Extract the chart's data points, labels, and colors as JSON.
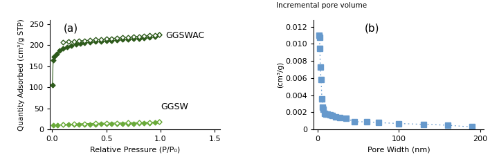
{
  "panel_a": {
    "title": "(a)",
    "xlabel": "Relative Pressure (P/P₀)",
    "ylabel": "Quantity Adsorbed (cm³/g STP)",
    "xlim": [
      -0.02,
      1.55
    ],
    "ylim": [
      0,
      260
    ],
    "yticks": [
      0,
      50,
      100,
      150,
      200,
      250
    ],
    "xticks": [
      0,
      0.5,
      1.0,
      1.5
    ],
    "ggswac_adsorption_x": [
      0.003,
      0.01,
      0.02,
      0.04,
      0.07,
      0.1,
      0.14,
      0.18,
      0.22,
      0.26,
      0.3,
      0.35,
      0.4,
      0.45,
      0.5,
      0.55,
      0.6,
      0.65,
      0.7,
      0.75,
      0.8,
      0.85,
      0.9,
      0.95,
      0.99
    ],
    "ggswac_adsorption_y": [
      105,
      165,
      173,
      180,
      187,
      192,
      196,
      199,
      202,
      204,
      206,
      207,
      208,
      209,
      210,
      211,
      212,
      213,
      214,
      215,
      216,
      217,
      218,
      220,
      225
    ],
    "ggswac_desorption_x": [
      0.99,
      0.95,
      0.9,
      0.85,
      0.8,
      0.75,
      0.7,
      0.65,
      0.6,
      0.55,
      0.5,
      0.45,
      0.4,
      0.35,
      0.3,
      0.25,
      0.2,
      0.15,
      0.1
    ],
    "ggswac_desorption_y": [
      226,
      224,
      223,
      222,
      221,
      220,
      219,
      218,
      217,
      216,
      215,
      214,
      213,
      212,
      211,
      210,
      209,
      208,
      207
    ],
    "ggsw_adsorption_x": [
      0.01,
      0.05,
      0.1,
      0.15,
      0.2,
      0.25,
      0.3,
      0.35,
      0.4,
      0.45,
      0.5,
      0.55,
      0.6,
      0.65,
      0.7,
      0.75,
      0.8,
      0.85,
      0.9,
      0.95,
      0.99
    ],
    "ggsw_adsorption_y": [
      10,
      10.5,
      11,
      11.2,
      11.5,
      11.8,
      12,
      12.2,
      12.5,
      12.7,
      13,
      13.2,
      13.5,
      13.7,
      14,
      14.2,
      14.5,
      15,
      15.5,
      16,
      18
    ],
    "ggsw_desorption_x": [
      0.99,
      0.9,
      0.8,
      0.7,
      0.6,
      0.5,
      0.4,
      0.3,
      0.2,
      0.1
    ],
    "ggsw_desorption_y": [
      18,
      17,
      16.5,
      16,
      15.5,
      15,
      14.5,
      14,
      13,
      11
    ],
    "color_dark": "#2d5a1b",
    "color_light": "#6aaa3a",
    "label_ggswac": "GGSWAC",
    "label_ggsw": "GGSW"
  },
  "panel_b": {
    "title": "(b)",
    "xlabel": "Pore Width (nm)",
    "ylabel_top": "Incremental pore volume",
    "ylabel_bot": "(cm³/g)",
    "xlim": [
      -5,
      205
    ],
    "ylim": [
      0,
      0.0128
    ],
    "yticks": [
      0,
      0.002,
      0.004,
      0.006,
      0.008,
      0.01,
      0.012
    ],
    "xticks": [
      0,
      100,
      200
    ],
    "pore_width": [
      1.5,
      2.0,
      2.5,
      3.0,
      4.0,
      5.0,
      6.0,
      7.0,
      8.0,
      10.0,
      12.0,
      15.0,
      18.0,
      22.0,
      27.0,
      35.0,
      45.0,
      60.0,
      75.0,
      100.0,
      130.0,
      160.0,
      190.0
    ],
    "pore_volume": [
      0.011,
      0.0108,
      0.0095,
      0.0073,
      0.0058,
      0.0036,
      0.0026,
      0.0024,
      0.0019,
      0.0018,
      0.0018,
      0.0017,
      0.0016,
      0.0015,
      0.0014,
      0.0013,
      0.0009,
      0.0009,
      0.0008,
      0.0007,
      0.0006,
      0.0005,
      0.0003
    ],
    "color": "#6699cc"
  },
  "fig_bg": "#ffffff"
}
